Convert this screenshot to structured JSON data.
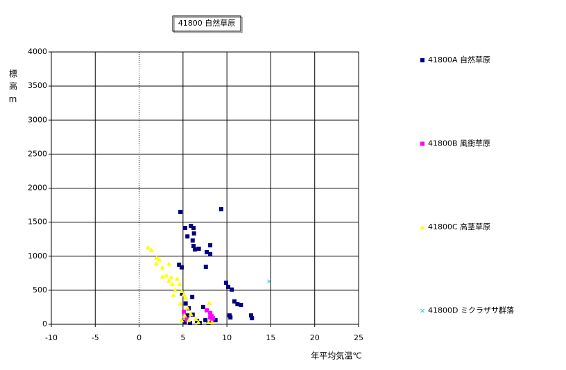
{
  "chart_data": {
    "type": "scatter",
    "title": "41800 自然草原",
    "x_label": "年平均気温℃",
    "y_label": "標高m",
    "xlim": [
      -10,
      25
    ],
    "xticks": [
      -10,
      -5,
      0,
      5,
      10,
      15,
      20,
      25
    ],
    "ylim": [
      0,
      4000
    ],
    "yticks": [
      0,
      500,
      1000,
      1500,
      2000,
      2500,
      3000,
      3500,
      4000
    ],
    "grid": true,
    "legend": "right",
    "series": [
      {
        "name": "41800A 自然草原",
        "color": "#000080",
        "marker": "square",
        "x": [
          4.7,
          9.35,
          5.25,
          5.9,
          6.2,
          5.5,
          6.25,
          6.1,
          6.2,
          6.35,
          6.8,
          8.1,
          7.7,
          8.1,
          7.6,
          4.55,
          4.85,
          9.9,
          10.15,
          10.55,
          10.85,
          11.2,
          11.6,
          10.3,
          10.4,
          12.75,
          12.85,
          8.7,
          7.3,
          6.05,
          4.9,
          5.3,
          5.65,
          5.5,
          5.2,
          5.8,
          6.6,
          6.9,
          7.55,
          7.9,
          6.1
        ],
        "values": [
          1650,
          1690,
          1415,
          1445,
          1415,
          1290,
          1335,
          1230,
          1150,
          1100,
          1110,
          1160,
          1060,
          1030,
          845,
          875,
          835,
          610,
          550,
          510,
          335,
          295,
          285,
          130,
          100,
          130,
          90,
          60,
          255,
          400,
          450,
          305,
          235,
          130,
          30,
          20,
          50,
          20,
          60,
          20,
          140
        ]
      },
      {
        "name": "41800B 風衝草原",
        "color": "#ff00ff",
        "marker": "square",
        "x": [
          5.1,
          7.7,
          8.1,
          8.25,
          8.4,
          8.1,
          8.3,
          5.4
        ],
        "values": [
          185,
          205,
          165,
          120,
          90,
          100,
          60,
          70
        ]
      },
      {
        "name": "41800C 高茎草原",
        "color": "#ffff00",
        "marker": "triangle",
        "x": [
          1.0,
          1.4,
          2.0,
          2.3,
          1.95,
          2.65,
          3.4,
          2.65,
          3.1,
          3.65,
          3.4,
          3.8,
          4.35,
          4.6,
          4.1,
          4.85,
          3.9,
          5.1,
          5.3,
          4.7,
          5.5,
          5.2,
          5.9,
          4.85,
          6.45,
          6.75,
          8.0,
          7.9,
          8.3,
          5.65
        ],
        "values": [
          1130,
          1090,
          980,
          950,
          890,
          835,
          885,
          700,
          720,
          690,
          640,
          590,
          670,
          590,
          500,
          490,
          430,
          440,
          385,
          305,
          245,
          130,
          150,
          60,
          80,
          30,
          315,
          30,
          30,
          60
        ]
      },
      {
        "name": "41800D ミクラザサ群落",
        "color": "#33cccc",
        "marker": "x",
        "x": [
          14.8
        ],
        "values": [
          630
        ]
      }
    ]
  }
}
